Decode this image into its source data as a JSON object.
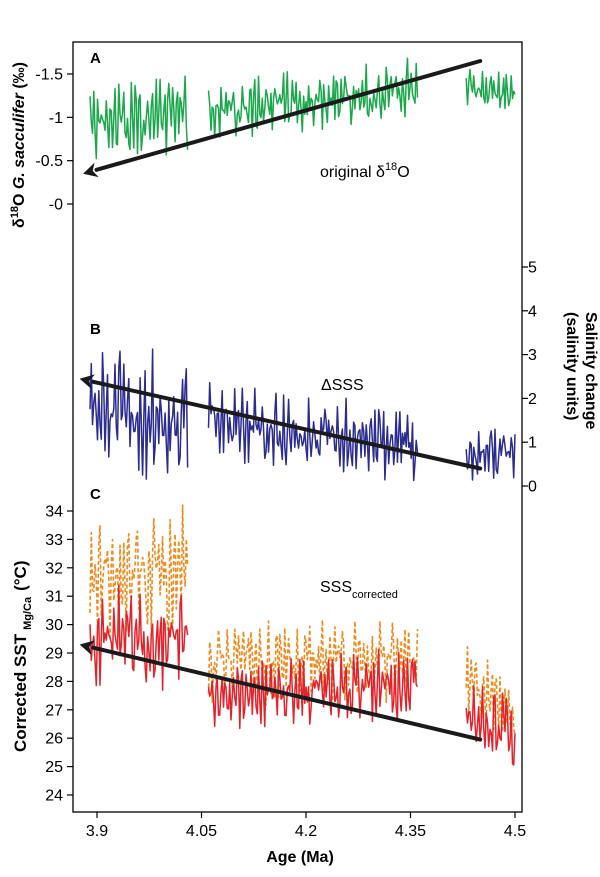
{
  "chart_data": {
    "type": "line",
    "x_axis": {
      "label": "Age (Ma)",
      "ticks": [
        3.9,
        4.05,
        4.2,
        4.35,
        4.5
      ],
      "tick_labels": [
        "3.9",
        "4.05",
        "4.2",
        "4.35",
        "4.5"
      ],
      "range": [
        3.87,
        4.52
      ]
    },
    "panels": [
      {
        "letter": "A",
        "annotation": "original δ¹⁸O",
        "annotation_base": "original δ",
        "annotation_sup": "18",
        "annotation_tail": "O",
        "y_label_base": "δ",
        "y_label_sup": "18",
        "y_label_mid": "O ",
        "y_label_italic": "G. sacculifer",
        "y_label_tail": " (‰)",
        "y_ticks": [
          -1.5,
          -1,
          -0.5,
          0
        ],
        "y_tick_labels": [
          "-1.5",
          "-1",
          "-0.5",
          "-0"
        ],
        "y_range": [
          -1.85,
          0.05
        ],
        "series": [
          {
            "name": "original δ18O",
            "color": "#1aa84b",
            "segments": [
              {
                "x0": 3.89,
                "x1": 4.03,
                "seed": 11,
                "base0": -0.9,
                "base1": -1.05,
                "amp": 0.38
              },
              {
                "x0": 4.06,
                "x1": 4.36,
                "seed": 23,
                "base0": -1.05,
                "base1": -1.32,
                "amp": 0.32
              },
              {
                "x0": 4.43,
                "x1": 4.5,
                "seed": 37,
                "base0": -1.3,
                "base1": -1.3,
                "amp": 0.22
              }
            ]
          }
        ],
        "trend": {
          "x_start": 4.45,
          "y_start": -1.65,
          "x_end": 3.88,
          "y_end": -0.35,
          "arrow_at": "end"
        }
      },
      {
        "letter": "B",
        "annotation": "ΔSSS",
        "y_label": "Salinity change (salinity units)",
        "y_label_line1": "Salinity change",
        "y_label_line2": "(salinity units)",
        "y_ticks": [
          0,
          1,
          2,
          3,
          4,
          5
        ],
        "y_tick_labels": [
          "0",
          "1",
          "2",
          "3",
          "4",
          "5"
        ],
        "y_range": [
          -0.25,
          5.6
        ],
        "series": [
          {
            "name": "ΔSSS",
            "color": "#2b2c8f",
            "segments": [
              {
                "x0": 3.89,
                "x1": 4.03,
                "seed": 51,
                "base0": 1.7,
                "base1": 1.5,
                "amp": 1.35
              },
              {
                "x0": 4.06,
                "x1": 4.36,
                "seed": 63,
                "base0": 1.5,
                "base1": 0.9,
                "amp": 0.75
              },
              {
                "x0": 4.43,
                "x1": 4.5,
                "seed": 77,
                "base0": 0.7,
                "base1": 0.8,
                "amp": 0.6
              }
            ]
          }
        ],
        "trend": {
          "x_start": 4.45,
          "y_start": 0.4,
          "x_end": 3.875,
          "y_end": 2.45,
          "arrow_at": "end"
        }
      },
      {
        "letter": "C",
        "annotation": "SSScorrected",
        "annotation_base": "SSS",
        "annotation_sub": "corrected",
        "y_label": "Corrected SST Mg/Ca (°C)",
        "y_label_base": "Corrected SST",
        "y_label_sub": "Mg/Ca",
        "y_label_tail": "(°C)",
        "y_ticks": [
          24,
          25,
          26,
          27,
          28,
          29,
          30,
          31,
          32,
          33,
          34
        ],
        "y_tick_labels": [
          "24",
          "25",
          "26",
          "27",
          "28",
          "29",
          "30",
          "31",
          "32",
          "33",
          "34"
        ],
        "y_range": [
          23.5,
          35.0
        ],
        "series": [
          {
            "name": "SSS corrected (dashed)",
            "color": "#f08a1c",
            "dashed": true,
            "segments": [
              {
                "x0": 3.89,
                "x1": 4.03,
                "seed": 81,
                "base0": 31.8,
                "base1": 31.8,
                "amp": 2.1
              },
              {
                "x0": 4.06,
                "x1": 4.36,
                "seed": 93,
                "base0": 28.6,
                "base1": 28.8,
                "amp": 1.25
              },
              {
                "x0": 4.43,
                "x1": 4.5,
                "seed": 107,
                "base0": 28.0,
                "base1": 27.0,
                "amp": 1.1
              }
            ]
          },
          {
            "name": "Corrected SST",
            "color": "#e3232b",
            "dashed": false,
            "segments": [
              {
                "x0": 3.89,
                "x1": 4.03,
                "seed": 121,
                "base0": 29.6,
                "base1": 29.6,
                "amp": 1.6
              },
              {
                "x0": 4.06,
                "x1": 4.36,
                "seed": 133,
                "base0": 27.6,
                "base1": 27.9,
                "amp": 1.1
              },
              {
                "x0": 4.43,
                "x1": 4.5,
                "seed": 147,
                "base0": 27.0,
                "base1": 26.2,
                "amp": 1.2
              }
            ]
          }
        ],
        "trend": {
          "x_start": 4.45,
          "y_start": 25.95,
          "x_end": 3.875,
          "y_end": 29.3,
          "arrow_at": "end"
        }
      }
    ]
  }
}
